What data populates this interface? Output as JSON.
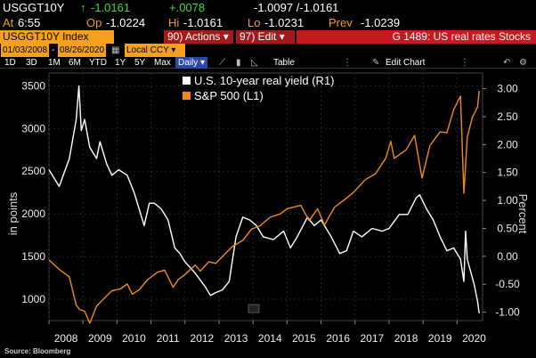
{
  "quote": {
    "ticker": "USGGT10Y",
    "arrow": "↑",
    "last": "-1.0161",
    "change": "+.0078",
    "bid_ask": "-1.0097 /-1.0161",
    "at_label": "At",
    "at_time": "6:55",
    "op_label": "Op",
    "open": "-1.0224",
    "hi_label": "Hi",
    "high": "-1.0161",
    "lo_label": "Lo",
    "low": "-1.0231",
    "prev_label": "Prev",
    "prev": "-1.0239"
  },
  "toolbar": {
    "security": "USGGT10Y Index",
    "actions": "90) Actions",
    "edit": "97) Edit",
    "graph_title": "G 1489: US real rates Stocks",
    "start_date": "01/03/2008",
    "end_date": "08/26/2020",
    "currency": "Local CCY",
    "periods": [
      "1D",
      "3D",
      "1M",
      "6M",
      "YTD",
      "1Y",
      "5Y",
      "Max"
    ],
    "frequency": "Daily",
    "table": "Table",
    "edit_chart": "Edit Chart"
  },
  "source": "Source: Bloomberg",
  "colors": {
    "real_yield": "#ffffff",
    "spx": "#f08a1c",
    "amber": "#f7a11a",
    "red": "#c8191f",
    "green": "#3ddc3d"
  },
  "chart_data": {
    "type": "line",
    "x_ticks": [
      "2008",
      "2009",
      "2010",
      "2011",
      "2012",
      "2013",
      "2014",
      "2015",
      "2016",
      "2017",
      "2018",
      "2019",
      "2020"
    ],
    "xlim": [
      2008.0,
      2020.75
    ],
    "left_axis": {
      "label": "in points",
      "ticks": [
        "3500",
        "3000",
        "2500",
        "2000",
        "1500",
        "1000"
      ],
      "ylim": [
        750,
        3650
      ]
    },
    "right_axis": {
      "label": "Percent",
      "ticks": [
        "3.00",
        "2.50",
        "2.00",
        "1.50",
        "1.00",
        "0.50",
        "0.00",
        "-0.50",
        "-1.00"
      ],
      "ylim": [
        -1.15,
        3.28
      ]
    },
    "legend_placement": "top-center",
    "series": [
      {
        "name": "U.S. 10-year real yield (R1)",
        "axis": "right",
        "color": "#ffffff",
        "points": [
          [
            2008.0,
            1.55
          ],
          [
            2008.3,
            1.25
          ],
          [
            2008.6,
            1.75
          ],
          [
            2008.8,
            2.45
          ],
          [
            2008.88,
            3.05
          ],
          [
            2008.95,
            2.25
          ],
          [
            2009.05,
            2.45
          ],
          [
            2009.2,
            1.95
          ],
          [
            2009.4,
            1.75
          ],
          [
            2009.5,
            2.05
          ],
          [
            2009.7,
            1.65
          ],
          [
            2009.85,
            1.45
          ],
          [
            2010.05,
            1.55
          ],
          [
            2010.3,
            1.45
          ],
          [
            2010.5,
            1.15
          ],
          [
            2010.65,
            0.85
          ],
          [
            2010.8,
            0.55
          ],
          [
            2010.95,
            0.95
          ],
          [
            2011.1,
            0.95
          ],
          [
            2011.3,
            0.85
          ],
          [
            2011.5,
            0.65
          ],
          [
            2011.7,
            0.15
          ],
          [
            2011.85,
            0.05
          ],
          [
            2012.0,
            -0.1
          ],
          [
            2012.3,
            -0.3
          ],
          [
            2012.6,
            -0.55
          ],
          [
            2012.75,
            -0.7
          ],
          [
            2012.9,
            -0.65
          ],
          [
            2013.1,
            -0.6
          ],
          [
            2013.3,
            -0.45
          ],
          [
            2013.5,
            0.35
          ],
          [
            2013.7,
            0.7
          ],
          [
            2013.9,
            0.65
          ],
          [
            2014.1,
            0.55
          ],
          [
            2014.3,
            0.35
          ],
          [
            2014.6,
            0.3
          ],
          [
            2014.9,
            0.45
          ],
          [
            2015.1,
            0.15
          ],
          [
            2015.3,
            0.35
          ],
          [
            2015.6,
            0.7
          ],
          [
            2015.8,
            0.55
          ],
          [
            2016.0,
            0.65
          ],
          [
            2016.3,
            0.35
          ],
          [
            2016.55,
            0.05
          ],
          [
            2016.75,
            0.1
          ],
          [
            2016.95,
            0.45
          ],
          [
            2017.2,
            0.35
          ],
          [
            2017.5,
            0.5
          ],
          [
            2017.8,
            0.45
          ],
          [
            2018.0,
            0.5
          ],
          [
            2018.3,
            0.75
          ],
          [
            2018.55,
            0.75
          ],
          [
            2018.8,
            1.05
          ],
          [
            2018.9,
            1.1
          ],
          [
            2019.1,
            0.85
          ],
          [
            2019.3,
            0.65
          ],
          [
            2019.5,
            0.35
          ],
          [
            2019.7,
            0.1
          ],
          [
            2019.9,
            0.15
          ],
          [
            2020.1,
            -0.05
          ],
          [
            2020.2,
            -0.45
          ],
          [
            2020.25,
            0.45
          ],
          [
            2020.3,
            -0.05
          ],
          [
            2020.5,
            -0.5
          ],
          [
            2020.6,
            -0.8
          ],
          [
            2020.65,
            -1.02
          ]
        ]
      },
      {
        "name": "S&P 500 (L1)",
        "axis": "left",
        "color": "#f08a1c",
        "points": [
          [
            2008.0,
            1460
          ],
          [
            2008.3,
            1350
          ],
          [
            2008.6,
            1260
          ],
          [
            2008.8,
            930
          ],
          [
            2008.9,
            880
          ],
          [
            2009.05,
            860
          ],
          [
            2009.2,
            720
          ],
          [
            2009.4,
            920
          ],
          [
            2009.6,
            1000
          ],
          [
            2009.85,
            1100
          ],
          [
            2010.1,
            1120
          ],
          [
            2010.3,
            1180
          ],
          [
            2010.45,
            1060
          ],
          [
            2010.65,
            1110
          ],
          [
            2010.9,
            1230
          ],
          [
            2011.2,
            1320
          ],
          [
            2011.4,
            1340
          ],
          [
            2011.65,
            1140
          ],
          [
            2011.8,
            1230
          ],
          [
            2012.0,
            1290
          ],
          [
            2012.3,
            1400
          ],
          [
            2012.45,
            1330
          ],
          [
            2012.7,
            1440
          ],
          [
            2012.9,
            1420
          ],
          [
            2013.1,
            1500
          ],
          [
            2013.4,
            1620
          ],
          [
            2013.7,
            1690
          ],
          [
            2013.95,
            1820
          ],
          [
            2014.2,
            1860
          ],
          [
            2014.5,
            1960
          ],
          [
            2014.8,
            2000
          ],
          [
            2015.0,
            2060
          ],
          [
            2015.4,
            2100
          ],
          [
            2015.65,
            1920
          ],
          [
            2015.9,
            2060
          ],
          [
            2016.1,
            1870
          ],
          [
            2016.4,
            2080
          ],
          [
            2016.7,
            2170
          ],
          [
            2016.95,
            2250
          ],
          [
            2017.3,
            2400
          ],
          [
            2017.6,
            2470
          ],
          [
            2017.9,
            2650
          ],
          [
            2018.05,
            2850
          ],
          [
            2018.15,
            2650
          ],
          [
            2018.5,
            2750
          ],
          [
            2018.75,
            2920
          ],
          [
            2018.97,
            2420
          ],
          [
            2019.2,
            2800
          ],
          [
            2019.5,
            2960
          ],
          [
            2019.7,
            2950
          ],
          [
            2019.9,
            3220
          ],
          [
            2020.1,
            3380
          ],
          [
            2020.2,
            2240
          ],
          [
            2020.3,
            2900
          ],
          [
            2020.45,
            3130
          ],
          [
            2020.6,
            3250
          ],
          [
            2020.65,
            3440
          ]
        ]
      }
    ]
  }
}
